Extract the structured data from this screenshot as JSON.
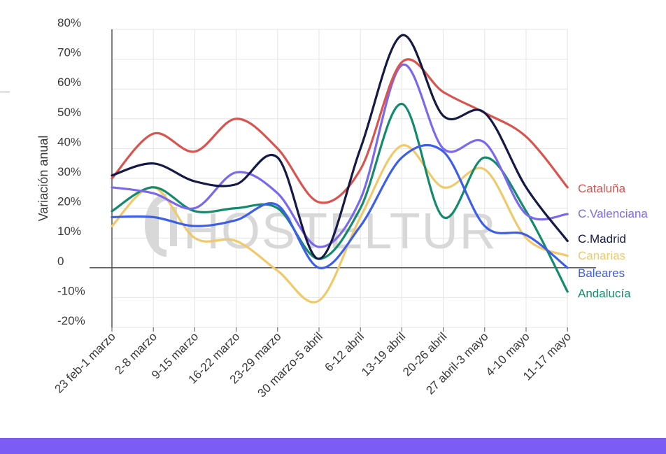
{
  "watermark": "HOSTELTUR",
  "colors": {
    "footer_bar": "#7b5cf5",
    "axis": "#555555",
    "grid": "#e4e4e4"
  },
  "chart_data": {
    "type": "line",
    "ylabel": "Variación anual",
    "xlabel": "",
    "ylim": [
      -20,
      80
    ],
    "grid": true,
    "legend": "right, labels at line ends",
    "y_ticks": [
      "-20%",
      "-10%",
      "0",
      "10%",
      "20%",
      "30%",
      "40%",
      "50%",
      "60%",
      "70%",
      "80%"
    ],
    "y_tick_values": [
      -20,
      -10,
      0,
      10,
      20,
      30,
      40,
      50,
      60,
      70,
      80
    ],
    "categories": [
      "23 feb-1 marzo",
      "2-8 marzo",
      "9-15 marzo",
      "16-22 marzo",
      "23-29 marzo",
      "30 marzo-5 abril",
      "6-12 abril",
      "13-19 abril",
      "20-26 abril",
      "27 abril-3 mayo",
      "4-10 mayo",
      "11-17 mayo"
    ],
    "series": [
      {
        "name": "Cataluña",
        "color": "#d9534f",
        "values": [
          30,
          45,
          39,
          50,
          40,
          22,
          33,
          69,
          59,
          52,
          44,
          27
        ]
      },
      {
        "name": "C.Valenciana",
        "color": "#7b68ee",
        "values": [
          27,
          25,
          20,
          32,
          25,
          7,
          23,
          68,
          40,
          42,
          18,
          18
        ]
      },
      {
        "name": "C.Madrid",
        "color": "#141a45",
        "values": [
          31,
          35,
          29,
          28,
          37,
          3,
          40,
          78,
          51,
          52,
          27,
          9
        ]
      },
      {
        "name": "Canarias",
        "color": "#f0c96b",
        "values": [
          14,
          27,
          10,
          9,
          -1,
          -11,
          17,
          41,
          27,
          33,
          10,
          4
        ]
      },
      {
        "name": "Baleares",
        "color": "#3d5ee8",
        "values": [
          17,
          17,
          14,
          16,
          21,
          0,
          14,
          37,
          39,
          14,
          11,
          0
        ]
      },
      {
        "name": "Andalucía",
        "color": "#138a6c",
        "values": [
          19,
          27,
          19,
          20,
          20,
          3,
          20,
          55,
          17,
          37,
          19,
          -8
        ]
      }
    ]
  }
}
